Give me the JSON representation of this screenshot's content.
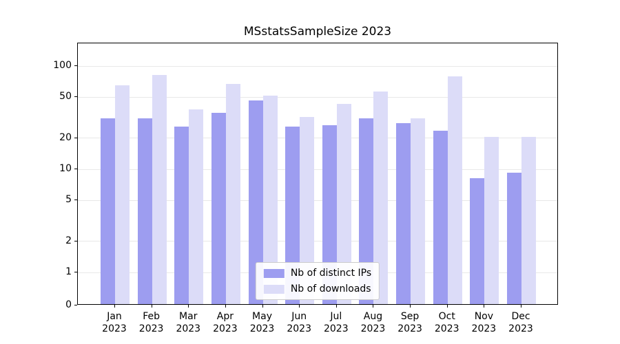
{
  "chart_data": {
    "type": "bar",
    "title": "MSstatsSampleSize 2023",
    "categories": [
      "Jan",
      "Feb",
      "Mar",
      "Apr",
      "May",
      "Jun",
      "Jul",
      "Aug",
      "Sep",
      "Oct",
      "Nov",
      "Dec"
    ],
    "year_label": "2023",
    "series": [
      {
        "name": "Nb of distinct IPs",
        "color": "#9d9df0",
        "values": [
          30,
          30,
          25,
          34,
          45,
          25,
          26,
          30,
          27,
          23,
          8,
          9
        ]
      },
      {
        "name": "Nb of downloads",
        "color": "#dcdcf8",
        "values": [
          63,
          80,
          37,
          65,
          50,
          31,
          42,
          55,
          30,
          77,
          20,
          20
        ]
      }
    ],
    "yticks": [
      0,
      1,
      2,
      5,
      10,
      20,
      50,
      100
    ],
    "xlabel": "",
    "ylabel": "",
    "scale": "symlog",
    "grid": "horizontal",
    "legend_position": "lower center"
  },
  "colors": {
    "background": "#ffffff",
    "axis": "#000000",
    "grid": "#e8e8e8",
    "legend_border": "#cccccc"
  }
}
